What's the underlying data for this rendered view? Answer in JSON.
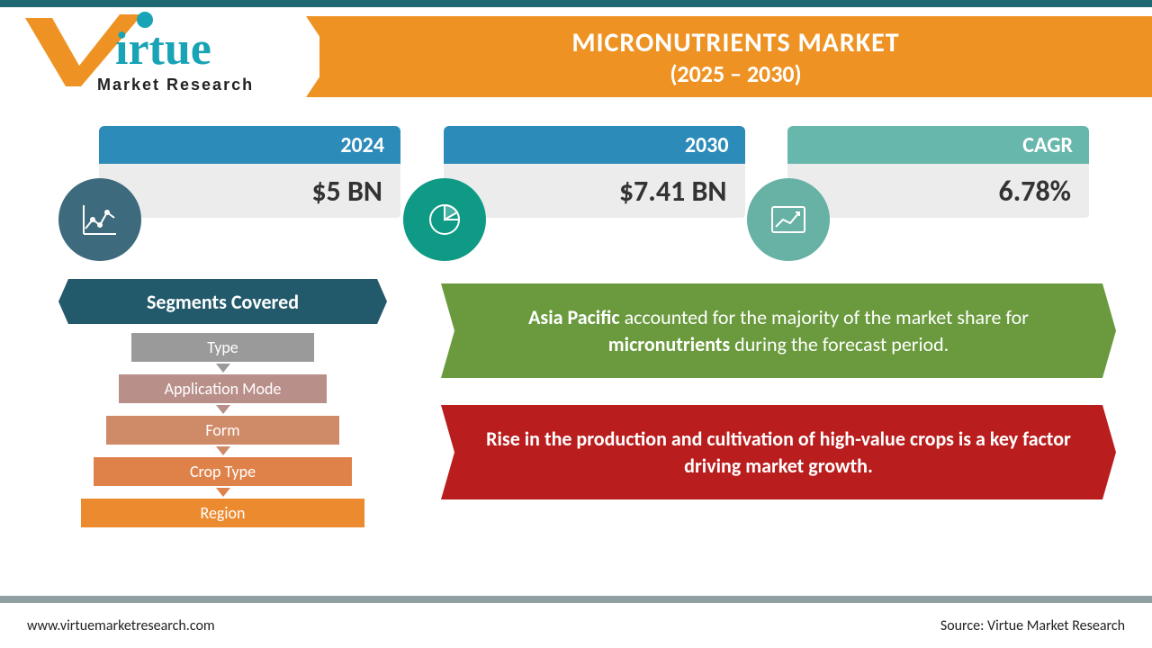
{
  "header": {
    "title": "MICRONUTRIENTS MARKET",
    "period": "(2025 – 2030)",
    "banner_color": "#ee9323"
  },
  "logo": {
    "brand_main": "irtue",
    "brand_tag": "Market Research",
    "v_color": "#ee9323",
    "text_color": "#18a4b6"
  },
  "cards": [
    {
      "label": "2024",
      "value": "$5 BN",
      "tab_color": "#2d8bb9",
      "circle_color": "#3d6a7d",
      "icon": "line-chart"
    },
    {
      "label": "2030",
      "value": "$7.41 BN",
      "tab_color": "#2d8bb9",
      "circle_color": "#0e9a84",
      "icon": "pie"
    },
    {
      "label": "CAGR",
      "value": "6.78%",
      "tab_color": "#68b7ac",
      "circle_color": "#67b2a4",
      "icon": "growth"
    }
  ],
  "segments": {
    "title": "Segments Covered",
    "items": [
      {
        "label": "Type",
        "color": "#9a9a9a"
      },
      {
        "label": "Application Mode",
        "color": "#b88f89"
      },
      {
        "label": "Form",
        "color": "#cf8a68"
      },
      {
        "label": "Crop Type",
        "color": "#df824a"
      },
      {
        "label": "Region",
        "color": "#ec8a2f"
      }
    ]
  },
  "callouts": {
    "green": {
      "bold1": "Asia Pacific",
      "mid1": " accounted for the majority of the market share for ",
      "bold2": "micronutrients",
      "mid2": " during the forecast period.",
      "color": "#6a9a3d"
    },
    "red": {
      "pre": "Rise in the production and cultivation of high-value crops is a ",
      "bold": "key factor",
      "post": " driving market growth.",
      "color": "#b91d1d"
    }
  },
  "footer": {
    "left": "www.virtuemarketresearch.com",
    "right": "Source: Virtue Market Research"
  },
  "colors": {
    "top_bar": "#1d6871",
    "bottom_rule": "#8f9fa2",
    "seg_header": "#225a6b",
    "card_value_bg": "#ececec"
  }
}
